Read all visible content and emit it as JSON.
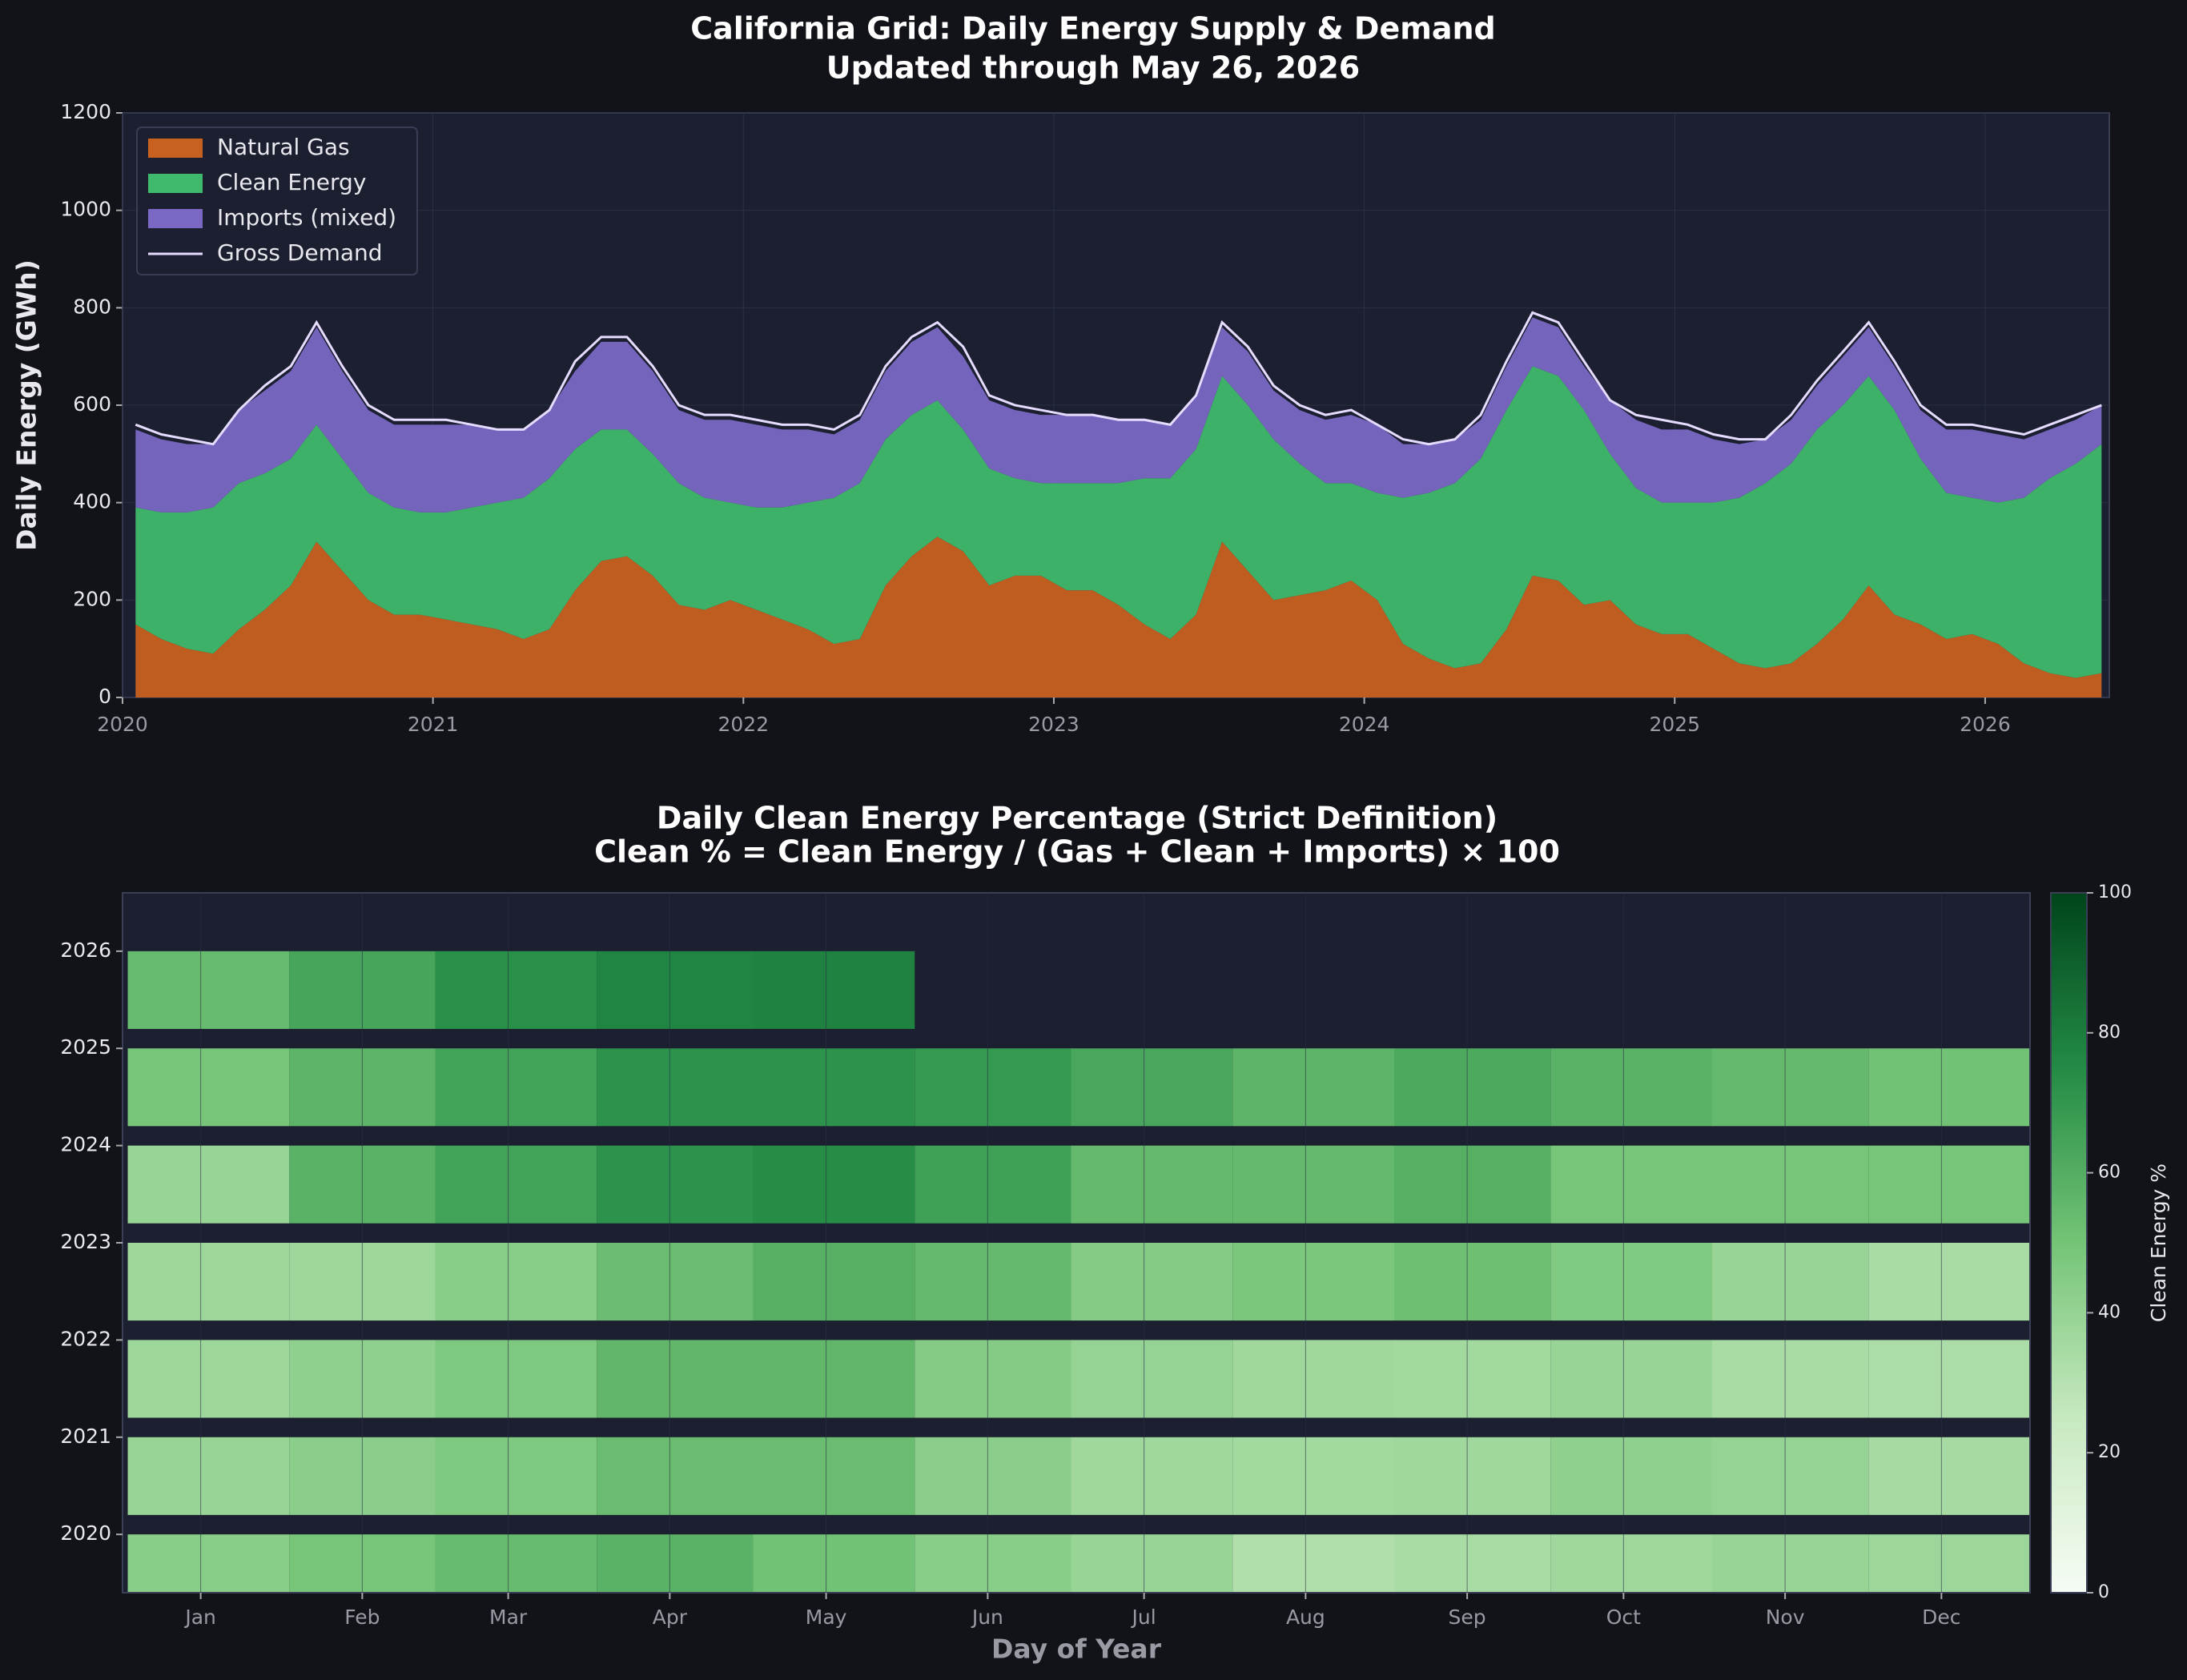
{
  "chart_data": [
    {
      "type": "stacked-area",
      "title": "California Grid: Daily Energy Supply & Demand",
      "subtitle": "Updated through May 26, 2026",
      "ylabel": "Daily Energy (GWh)",
      "xlim": [
        2020,
        2026.4
      ],
      "xticks": [
        2020,
        2021,
        2022,
        2023,
        2024,
        2025,
        2026
      ],
      "ylim": [
        0,
        1200
      ],
      "yticks": [
        0,
        200,
        400,
        600,
        800,
        1000,
        1200
      ],
      "grid": true,
      "legend": "upper left",
      "x": [
        2020.042,
        2020.125,
        2020.208,
        2020.292,
        2020.375,
        2020.458,
        2020.542,
        2020.625,
        2020.708,
        2020.792,
        2020.875,
        2020.958,
        2021.042,
        2021.125,
        2021.208,
        2021.292,
        2021.375,
        2021.458,
        2021.542,
        2021.625,
        2021.708,
        2021.792,
        2021.875,
        2021.958,
        2022.042,
        2022.125,
        2022.208,
        2022.292,
        2022.375,
        2022.458,
        2022.542,
        2022.625,
        2022.708,
        2022.792,
        2022.875,
        2022.958,
        2023.042,
        2023.125,
        2023.208,
        2023.292,
        2023.375,
        2023.458,
        2023.542,
        2023.625,
        2023.708,
        2023.792,
        2023.875,
        2023.958,
        2024.042,
        2024.125,
        2024.208,
        2024.292,
        2024.375,
        2024.458,
        2024.542,
        2024.625,
        2024.708,
        2024.792,
        2024.875,
        2024.958,
        2025.042,
        2025.125,
        2025.208,
        2025.292,
        2025.375,
        2025.458,
        2025.542,
        2025.625,
        2025.708,
        2025.792,
        2025.875,
        2025.958,
        2026.042,
        2026.125,
        2026.208,
        2026.292,
        2026.375
      ],
      "series": [
        {
          "name": "Natural Gas",
          "color": "#c8601f",
          "values": [
            150,
            120,
            100,
            90,
            140,
            180,
            230,
            320,
            260,
            200,
            170,
            170,
            160,
            150,
            140,
            120,
            140,
            220,
            280,
            290,
            250,
            190,
            180,
            200,
            180,
            160,
            140,
            110,
            120,
            230,
            290,
            330,
            300,
            230,
            250,
            250,
            220,
            220,
            190,
            150,
            120,
            170,
            320,
            260,
            200,
            210,
            220,
            240,
            200,
            110,
            80,
            60,
            70,
            140,
            250,
            240,
            190,
            200,
            150,
            130,
            130,
            100,
            70,
            60,
            70,
            110,
            160,
            230,
            170,
            150,
            120,
            130,
            110,
            70,
            50,
            40,
            50
          ]
        },
        {
          "name": "Clean Energy",
          "color": "#3fb96b",
          "values": [
            240,
            260,
            280,
            300,
            300,
            280,
            260,
            240,
            230,
            220,
            220,
            210,
            220,
            240,
            260,
            290,
            310,
            290,
            270,
            260,
            250,
            250,
            230,
            200,
            210,
            230,
            260,
            300,
            320,
            300,
            290,
            280,
            250,
            240,
            200,
            190,
            220,
            220,
            250,
            300,
            330,
            340,
            340,
            340,
            330,
            270,
            220,
            200,
            220,
            300,
            340,
            380,
            420,
            450,
            430,
            420,
            400,
            300,
            280,
            270,
            270,
            300,
            340,
            380,
            410,
            440,
            440,
            430,
            420,
            340,
            300,
            280,
            290,
            340,
            400,
            440,
            470
          ]
        },
        {
          "name": "Imports (mixed)",
          "color": "#7a68c4",
          "values": [
            160,
            150,
            140,
            130,
            150,
            170,
            180,
            200,
            180,
            170,
            170,
            180,
            180,
            170,
            150,
            140,
            140,
            160,
            180,
            180,
            170,
            150,
            160,
            170,
            170,
            160,
            150,
            130,
            130,
            140,
            150,
            150,
            150,
            140,
            140,
            140,
            140,
            140,
            130,
            120,
            110,
            110,
            100,
            110,
            100,
            110,
            130,
            140,
            140,
            110,
            100,
            90,
            80,
            90,
            100,
            100,
            90,
            110,
            140,
            150,
            150,
            130,
            110,
            90,
            90,
            90,
            100,
            100,
            90,
            100,
            130,
            140,
            140,
            120,
            100,
            90,
            80
          ]
        },
        {
          "name": "Gross Demand",
          "color": "#e6dcff",
          "kind": "line",
          "values": [
            560,
            540,
            530,
            520,
            590,
            640,
            680,
            770,
            680,
            600,
            570,
            570,
            570,
            560,
            550,
            550,
            590,
            690,
            740,
            740,
            680,
            600,
            580,
            580,
            570,
            560,
            560,
            550,
            580,
            680,
            740,
            770,
            720,
            620,
            600,
            590,
            580,
            580,
            570,
            570,
            560,
            620,
            770,
            720,
            640,
            600,
            580,
            590,
            560,
            530,
            520,
            530,
            580,
            690,
            790,
            770,
            690,
            610,
            580,
            570,
            560,
            540,
            530,
            530,
            580,
            650,
            710,
            770,
            690,
            600,
            560,
            560,
            550,
            540,
            560,
            580,
            600
          ]
        }
      ]
    },
    {
      "type": "heatmap",
      "title": "Daily Clean Energy Percentage (Strict Definition)",
      "subtitle": "Clean % = Clean Energy / (Gas + Clean + Imports) × 100",
      "xlabel": "Day of Year",
      "xlim": [
        0,
        366
      ],
      "xticks": [
        {
          "value": 15,
          "label": "Jan"
        },
        {
          "value": 46,
          "label": "Feb"
        },
        {
          "value": 74,
          "label": "Mar"
        },
        {
          "value": 105,
          "label": "Apr"
        },
        {
          "value": 135,
          "label": "May"
        },
        {
          "value": 166,
          "label": "Jun"
        },
        {
          "value": 196,
          "label": "Jul"
        },
        {
          "value": 227,
          "label": "Aug"
        },
        {
          "value": 258,
          "label": "Sep"
        },
        {
          "value": 288,
          "label": "Oct"
        },
        {
          "value": 319,
          "label": "Nov"
        },
        {
          "value": 349,
          "label": "Dec"
        }
      ],
      "ylim": [
        2019.4,
        2026.6
      ],
      "yticks": [
        2020,
        2021,
        2022,
        2023,
        2024,
        2025,
        2026
      ],
      "bins": [
        1,
        32,
        60,
        91,
        121,
        152,
        182,
        213,
        244,
        274,
        305,
        335,
        366
      ],
      "y": [
        2020,
        2021,
        2022,
        2023,
        2024,
        2025,
        2026
      ],
      "values": [
        [
          44,
          49,
          54,
          58,
          51,
          44,
          39,
          32,
          34,
          37,
          39,
          38
        ],
        [
          39,
          43,
          47,
          53,
          53,
          43,
          37,
          36,
          37,
          42,
          40,
          35
        ],
        [
          38,
          42,
          47,
          56,
          56,
          45,
          40,
          37,
          36,
          39,
          34,
          33
        ],
        [
          38,
          38,
          44,
          53,
          59,
          55,
          45,
          48,
          52,
          46,
          39,
          34
        ],
        [
          39,
          58,
          65,
          72,
          74,
          66,
          55,
          55,
          59,
          49,
          49,
          49
        ],
        [
          49,
          57,
          65,
          72,
          72,
          69,
          63,
          57,
          62,
          58,
          55,
          51
        ],
        [
          54,
          64,
          73,
          77,
          78,
          null,
          null,
          null,
          null,
          null,
          null,
          null
        ]
      ],
      "colormap": [
        "#f7fcf5",
        "#c7e9c0",
        "#74c476",
        "#238b45",
        "#00441b"
      ],
      "colorbar": {
        "label": "Clean Energy %",
        "lim": [
          0,
          100
        ],
        "ticks": [
          0,
          20,
          40,
          60,
          80,
          100
        ]
      }
    }
  ]
}
